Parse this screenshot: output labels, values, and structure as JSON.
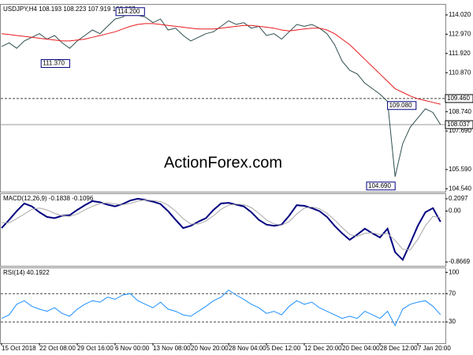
{
  "chart_data": [
    {
      "type": "line",
      "title": "USDJPY,H4  108.193 108.223 107.919 108.037",
      "watermark": "ActionForex.com",
      "series": [
        {
          "name": "USDJPY",
          "color": "#2f4f4f",
          "values": [
            112.3,
            112.5,
            112.2,
            112.6,
            112.8,
            113.0,
            112.7,
            112.9,
            112.5,
            112.2,
            112.6,
            112.9,
            113.2,
            113.0,
            113.4,
            113.8,
            113.9,
            114.2,
            114.0,
            113.9,
            113.6,
            113.8,
            113.2,
            113.3,
            112.9,
            112.6,
            112.8,
            113.0,
            113.1,
            113.4,
            113.7,
            113.5,
            113.6,
            113.3,
            113.4,
            112.9,
            113.0,
            112.7,
            113.1,
            113.5,
            113.4,
            113.5,
            113.3,
            113.0,
            112.4,
            111.5,
            111.0,
            110.8,
            110.3,
            110.0,
            109.7,
            109.3,
            105.2,
            107.0,
            107.9,
            108.4,
            108.9,
            108.7,
            108.037
          ]
        },
        {
          "name": "MA",
          "color": "#e8191c",
          "values": [
            113.0,
            112.95,
            112.9,
            112.85,
            112.8,
            112.75,
            112.7,
            112.65,
            112.6,
            112.6,
            112.65,
            112.7,
            112.8,
            112.9,
            113.0,
            113.1,
            113.25,
            113.4,
            113.5,
            113.55,
            113.55,
            113.5,
            113.45,
            113.4,
            113.35,
            113.3,
            113.25,
            113.25,
            113.25,
            113.3,
            113.35,
            113.4,
            113.45,
            113.45,
            113.4,
            113.35,
            113.3,
            113.2,
            113.15,
            113.2,
            113.25,
            113.3,
            113.3,
            113.2,
            113.0,
            112.7,
            112.4,
            112.0,
            111.6,
            111.2,
            110.8,
            110.4,
            110.0,
            109.8,
            109.6,
            109.45,
            109.35,
            109.25,
            109.15
          ]
        }
      ],
      "ylim": [
        104.38,
        114.62
      ],
      "yticks": [
        {
          "value": 114.02,
          "label": "114.020"
        },
        {
          "value": 112.97,
          "label": "112.970"
        },
        {
          "value": 111.92,
          "label": "111.920"
        },
        {
          "value": 110.87,
          "label": "110.870"
        },
        {
          "value": 108.74,
          "label": "108.740"
        },
        {
          "value": 107.69,
          "label": "107.690"
        },
        {
          "value": 105.59,
          "label": "105.590"
        },
        {
          "value": 104.54,
          "label": "104.540"
        }
      ],
      "levels": [
        {
          "value": 109.46,
          "label": "109.460",
          "style": "dashed"
        },
        {
          "value": 108.037,
          "label": "108.037",
          "style": "solid"
        }
      ],
      "annotations": [
        {
          "x": 17,
          "value": 114.2,
          "label": "114.200"
        },
        {
          "x": 9,
          "value": 111.37,
          "label": "111.370"
        },
        {
          "x": 51,
          "value": 109.08,
          "label": "109.080"
        },
        {
          "x": 52,
          "value": 104.69,
          "label": "104.690"
        }
      ]
    },
    {
      "type": "line",
      "title": "MACD(12,26,9) -0.1838 -0.1096",
      "series": [
        {
          "name": "MACD",
          "color": "#000080",
          "width": 2,
          "values": [
            -0.29,
            -0.15,
            0.0,
            0.13,
            0.08,
            -0.02,
            -0.1,
            -0.12,
            -0.08,
            -0.07,
            0.02,
            0.1,
            0.17,
            0.15,
            0.11,
            0.08,
            0.12,
            0.18,
            0.21,
            0.19,
            0.16,
            0.12,
            0.0,
            -0.15,
            -0.29,
            -0.25,
            -0.18,
            -0.12,
            0.02,
            0.13,
            0.14,
            0.11,
            0.08,
            -0.02,
            -0.15,
            -0.23,
            -0.25,
            -0.23,
            -0.08,
            0.1,
            0.09,
            0.05,
            0.0,
            -0.1,
            -0.25,
            -0.38,
            -0.49,
            -0.4,
            -0.3,
            -0.38,
            -0.45,
            -0.3,
            -0.7,
            -0.83,
            -0.55,
            -0.25,
            -0.02,
            0.05,
            -0.1838
          ]
        },
        {
          "name": "Signal",
          "color": "#a9a9a9",
          "width": 1,
          "values": [
            -0.2,
            -0.2,
            -0.13,
            -0.05,
            0.03,
            0.05,
            0.02,
            -0.04,
            -0.08,
            -0.09,
            -0.05,
            0.02,
            0.08,
            0.13,
            0.14,
            0.12,
            0.11,
            0.13,
            0.17,
            0.19,
            0.18,
            0.16,
            0.1,
            0.0,
            -0.13,
            -0.22,
            -0.22,
            -0.17,
            -0.08,
            0.03,
            0.1,
            0.12,
            0.11,
            0.06,
            -0.04,
            -0.15,
            -0.22,
            -0.24,
            -0.18,
            -0.05,
            0.05,
            0.07,
            0.04,
            -0.04,
            -0.15,
            -0.28,
            -0.4,
            -0.43,
            -0.38,
            -0.37,
            -0.4,
            -0.38,
            -0.5,
            -0.65,
            -0.66,
            -0.48,
            -0.25,
            -0.09,
            -0.1096
          ]
        }
      ],
      "ylim": [
        -0.933,
        0.303
      ],
      "yticks": [
        0.2097,
        {
          "value": 0,
          "label": "0.00"
        },
        -0.8669
      ]
    },
    {
      "type": "line",
      "title": "RSI(14) 40.1922",
      "series": [
        {
          "name": "RSI",
          "color": "#1e90ff",
          "width": 1,
          "values": [
            35,
            40,
            55,
            60,
            52,
            48,
            45,
            50,
            42,
            38,
            48,
            55,
            60,
            58,
            65,
            62,
            68,
            70,
            60,
            55,
            50,
            58,
            48,
            45,
            40,
            38,
            45,
            52,
            60,
            65,
            75,
            68,
            62,
            55,
            50,
            42,
            45,
            40,
            52,
            60,
            55,
            58,
            50,
            45,
            40,
            35,
            38,
            35,
            45,
            40,
            35,
            45,
            25,
            48,
            55,
            58,
            60,
            52,
            40.1922
          ]
        }
      ],
      "ylim": [
        0,
        107
      ],
      "yticks": [
        100,
        70,
        30
      ],
      "levels": [
        {
          "value": 70,
          "style": "dashed"
        },
        {
          "value": 30,
          "style": "dashed"
        }
      ],
      "xticks": [
        {
          "value": 0,
          "label": "15 Oct 2018"
        },
        {
          "value": 5,
          "label": "22 Oct 08:00"
        },
        {
          "value": 10,
          "label": "29 Oct 16:00"
        },
        {
          "value": 15,
          "label": "6 Nov 00:00"
        },
        {
          "value": 20,
          "label": "13 Nov 08:00"
        },
        {
          "value": 25,
          "label": "20 Nov 20:00"
        },
        {
          "value": 30,
          "label": "28 Nov 04:00"
        },
        {
          "value": 35,
          "label": "5 Dec 12:00"
        },
        {
          "value": 40,
          "label": "12 Dec 20:00"
        },
        {
          "value": 45,
          "label": "20 Dec 04:00"
        },
        {
          "value": 50,
          "label": "28 Dec 12:00"
        },
        {
          "value": 55,
          "label": "7 Jan 20:00"
        }
      ]
    }
  ]
}
